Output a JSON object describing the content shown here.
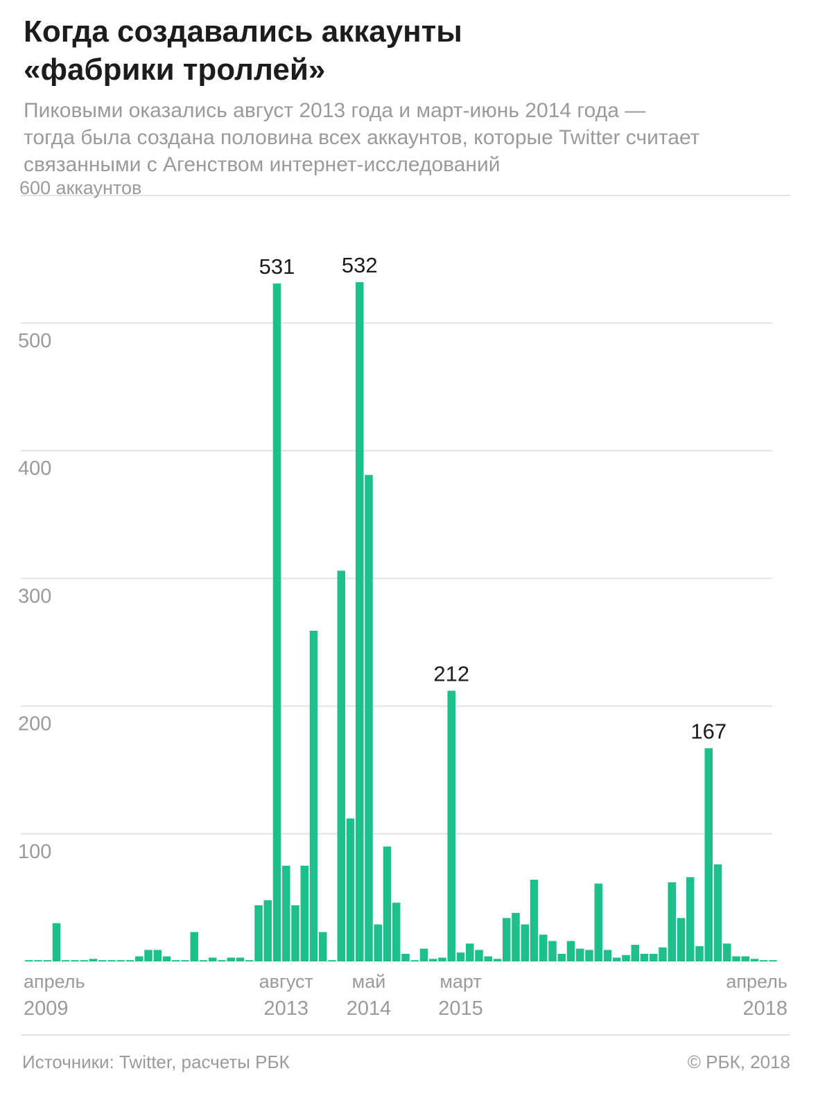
{
  "header": {
    "title_lines": [
      "Когда создавались аккаунты",
      "«фабрики троллей»"
    ],
    "subtitle_lines": [
      "Пиковыми оказались август 2013 года и март-июнь 2014 года —",
      "тогда была создана половина всех аккаунтов, которые Twitter считает",
      "связанными с Агенством интернет-исследований"
    ]
  },
  "footer": {
    "source": "Источники: Twitter, расчеты РБК",
    "copyright": "© РБК, 2018"
  },
  "colors": {
    "bar": "#1dbf8a",
    "grid": "#e3e3e3",
    "axis_text": "#9a9a9a",
    "title": "#1c1c1c"
  },
  "chart_data": {
    "type": "bar",
    "title": "Когда создавались аккаунты «фабрики троллей»",
    "subtitle": "Пиковыми оказались август 2013 года и март-июнь 2014 года — тогда была создана половина всех аккаунтов, которые Twitter считает связанными с Агенством интернет-исследований",
    "ylabel": "",
    "y_unit_label": "600 аккаунтов",
    "ylim": [
      0,
      600
    ],
    "yticks": [
      100,
      200,
      300,
      400,
      500
    ],
    "grid": true,
    "first_month": "2009-04",
    "last_month": "2018-04",
    "x_tick_labels": [
      {
        "index": 0,
        "month": "апрель",
        "year": "2009",
        "align": "left"
      },
      {
        "index": 28,
        "month": "август",
        "year": "2013",
        "align": "center"
      },
      {
        "index": 37,
        "month": "май",
        "year": "2014",
        "align": "center"
      },
      {
        "index": 47,
        "month": "март",
        "year": "2015",
        "align": "center"
      },
      {
        "index": 81,
        "month": "апрель",
        "year": "2018",
        "align": "right"
      }
    ],
    "values": [
      1,
      1,
      1,
      30,
      1,
      1,
      1,
      2,
      1,
      1,
      1,
      1,
      4,
      9,
      9,
      4,
      1,
      1,
      23,
      1,
      3,
      1,
      3,
      3,
      1,
      44,
      48,
      531,
      75,
      44,
      75,
      259,
      23,
      1,
      306,
      112,
      532,
      381,
      29,
      90,
      46,
      6,
      1,
      10,
      2,
      3,
      212,
      7,
      14,
      9,
      4,
      2,
      34,
      38,
      29,
      64,
      21,
      16,
      6,
      16,
      10,
      9,
      61,
      9,
      3,
      5,
      13,
      6,
      6,
      11,
      62,
      34,
      66,
      12,
      167,
      76,
      14,
      4,
      4,
      2,
      1,
      1
    ],
    "annotations": [
      {
        "index": 27,
        "text": "531"
      },
      {
        "index": 36,
        "text": "532"
      },
      {
        "index": 46,
        "text": "212"
      },
      {
        "index": 74,
        "text": "167"
      }
    ]
  }
}
